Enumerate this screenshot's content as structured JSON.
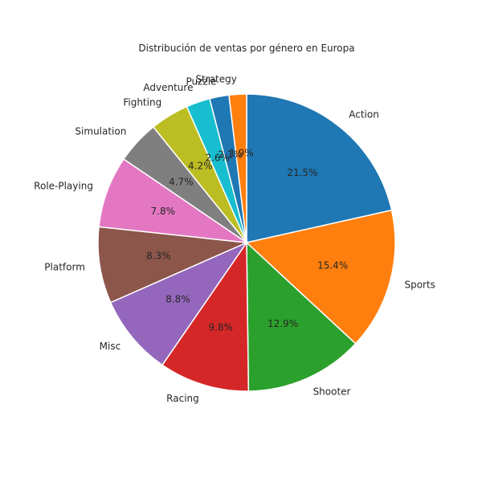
{
  "chart_data": {
    "type": "pie",
    "title": "Distribución de ventas por género en Europa",
    "start_angle_deg": 90,
    "direction": "clockwise",
    "slices": [
      {
        "label": "Action",
        "value": 21.5,
        "pct_text": "21.5%",
        "color": "#1f77b4"
      },
      {
        "label": "Sports",
        "value": 15.4,
        "pct_text": "15.4%",
        "color": "#ff7f0e"
      },
      {
        "label": "Shooter",
        "value": 12.9,
        "pct_text": "12.9%",
        "color": "#2ca02c"
      },
      {
        "label": "Racing",
        "value": 9.8,
        "pct_text": "9.8%",
        "color": "#d62728"
      },
      {
        "label": "Misc",
        "value": 8.8,
        "pct_text": "8.8%",
        "color": "#9467bd"
      },
      {
        "label": "Platform",
        "value": 8.3,
        "pct_text": "8.3%",
        "color": "#8c564b"
      },
      {
        "label": "Role-Playing",
        "value": 7.8,
        "pct_text": "7.8%",
        "color": "#e377c2"
      },
      {
        "label": "Simulation",
        "value": 4.7,
        "pct_text": "4.7%",
        "color": "#7f7f7f"
      },
      {
        "label": "Fighting",
        "value": 4.2,
        "pct_text": "4.2%",
        "color": "#bcbd22"
      },
      {
        "label": "Adventure",
        "value": 2.6,
        "pct_text": "2.6%",
        "color": "#17becf"
      },
      {
        "label": "Puzzle",
        "value": 2.1,
        "pct_text": "2.1%",
        "color": "#1f77b4"
      },
      {
        "label": "Strategy",
        "value": 1.9,
        "pct_text": "1.9%",
        "color": "#ff7f0e"
      }
    ]
  }
}
